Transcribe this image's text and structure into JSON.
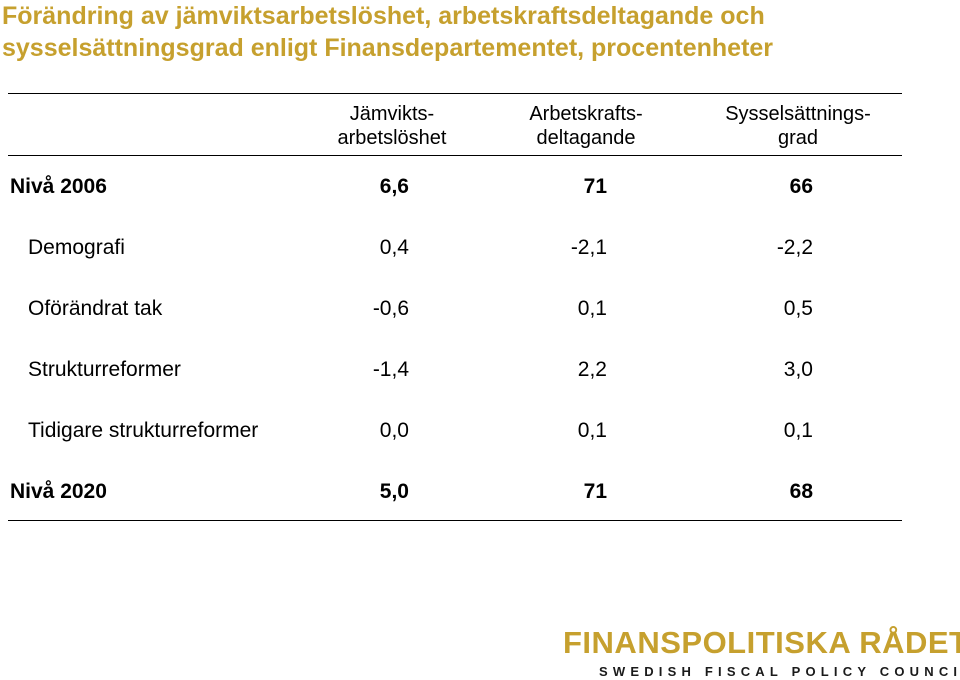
{
  "title": {
    "line1": "Förändring av jämviktsarbetslöshet, arbetskraftsdeltagande och",
    "line2": "sysselsättningsgrad enligt Finansdepartementet, procentenheter"
  },
  "table": {
    "headers": [
      {
        "line1": "Jämvikts-",
        "line2": "arbetslöshet"
      },
      {
        "line1": "Arbetskrafts-",
        "line2": "deltagande"
      },
      {
        "line1": "Sysselsättnings-",
        "line2": "grad"
      }
    ],
    "rows": [
      {
        "label": "Nivå 2006",
        "values": [
          "6,6",
          "71",
          "66"
        ]
      },
      {
        "label": "Demografi",
        "values": [
          "0,4",
          "-2,1",
          "-2,2"
        ]
      },
      {
        "label": "Oförändrat tak",
        "values": [
          "-0,6",
          "0,1",
          "0,5"
        ]
      },
      {
        "label": "Strukturreformer",
        "values": [
          "-1,4",
          "2,2",
          "3,0"
        ]
      },
      {
        "label": "Tidigare strukturreformer",
        "values": [
          "0,0",
          "0,1",
          "0,1"
        ]
      },
      {
        "label": "Nivå 2020",
        "values": [
          "5,0",
          "71",
          "68"
        ]
      }
    ]
  },
  "logo": {
    "name": "FINANSPOLITISKA RÅDET",
    "tagline": "SWEDISH FISCAL POLICY COUNCIL"
  },
  "colors": {
    "accent": "#c6a02e"
  }
}
